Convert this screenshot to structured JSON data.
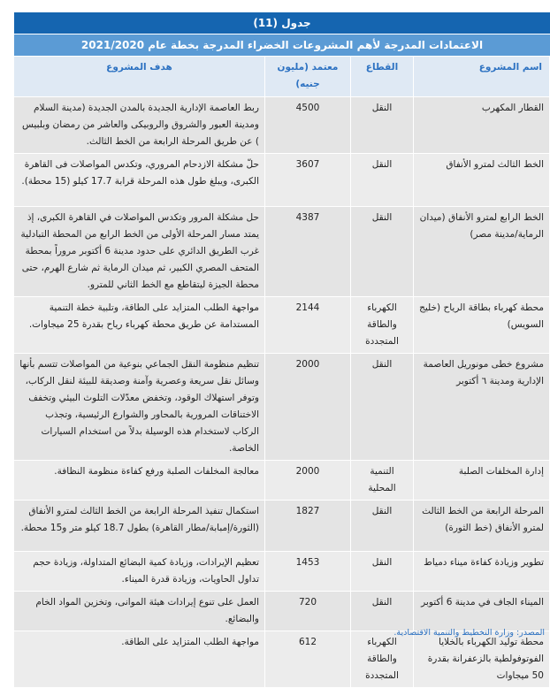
{
  "table": {
    "title": "جدول (11)",
    "subtitle": "الاعتمادات المدرجة لأهم المشروعات الخضراء المدرجة بخطة عام 2021/2020",
    "headers": {
      "name": "اسم المشروع",
      "sector": "القطاع",
      "amount": "معتمد (مليون جنيه)",
      "goal": "هدف المشروع"
    },
    "rows": [
      {
        "name": "القطار المكهرب",
        "sector": "النقل",
        "amount": "4500",
        "goal": "ربط العاصمة الإدارية الجديدة بالمدن الجديدة (مدينة السلام ومدينة العبور والشروق والروبيكى والعاشر من رمضان وبلبيس ) عن طريق المرحلة الرابعة من الخط الثالث."
      },
      {
        "name": "الخط الثالث لمترو الأنفاق",
        "sector": "النقل",
        "amount": "3607",
        "goal": "حلّ مشكلة الازدحام المروري، وتكدس المواصلات فى القاهرة الكبرى، ويبلغ طول هذه المرحلة قرابة 17.7 كيلو (15 محطة)."
      },
      {
        "name": "الخط الرابع لمترو الأنفاق (ميدان الرماية/مدينة مصر)",
        "sector": "النقل",
        "amount": "4387",
        "goal": "حل مشكلة المرور وتكدس المواصلات في القاهرة الكبرى، إذ يمتد مسار المرحلة الأولى من الخط الرابع من المحطة التبادلية غرب الطريق الدائري على حدود مدينة 6 أكتوبر  مروراً بمحطة المتحف المصري الكبير، ثم ميدان الرماية ثم شارع الهرم، حتى محطة الجيزة ليتقاطع مع الخط الثاني للمترو."
      },
      {
        "name": "محطة كهرباء بطاقة الرياح (خليج السويس)",
        "sector": "الكهرباء والطاقة المتجددة",
        "amount": "2144",
        "goal": "مواجهة الطلب المتزايد على الطاقة، وتلبية خطة التنمية المستدامة عن طريق محطة كهرباء رياح بقدرة 25 ميجاوات."
      },
      {
        "name": "مشروع خطى مونوريل العاصمة الإدارية ومدينة ٦ أكتوبر",
        "sector": "النقل",
        "amount": "2000",
        "goal": "تنظيم منظومة النقل الجماعي بنوعية من المواصلات تتسم بأنها وسائل نقل سريعة وعصرية وآمنة وصديقة للبيئة لنقل الركاب، وتوفر استهلاك الوقود، وتخفض معدّلات التلوث البيئي وتخفف الاختناقات المرورية بالمحاور والشوارع الرئيسية، وتجذب الركاب لاستخدام هذه الوسيلة بدلاً من استخدام السيارات الخاصة."
      },
      {
        "name": "إدارة المخلفات الصلبة",
        "sector": "التنمية المحلية",
        "amount": "2000",
        "goal": "معالجة المخلفات الصلبة ورفع كفاءة منظومة النظافة."
      },
      {
        "name": "المرحلة الرابعة من الخط الثالث لمترو الأنفاق (خط الثورة)",
        "sector": "النقل",
        "amount": "1827",
        "goal": "استكمال تنفيذ المرحلة الرابعة من الخط الثالث لمترو الأنفاق (الثورة/إمبابة/مطار القاهرة) بطول 18.7 كيلو متر و15 محطة."
      },
      {
        "name": "تطوير وزيادة كفاءة ميناء دمياط",
        "sector": "النقل",
        "amount": "1453",
        "goal": "تعظيم الإيرادات، وزيادة كمية البضائع المتداولة، وزيادة حجم تداول الحاويات، وزيادة قدرة الميناء."
      },
      {
        "name": "الميناء الجاف في مدينة 6 أكتوبر",
        "sector": "النقل",
        "amount": "720",
        "goal": "العمل على تنوع إيرادات هيئة الموانى، وتخزين المواد الخام والبضائع."
      },
      {
        "name": "محطة توليد الكهرباء بالخلايا الفوتوفولطية بالزعفرانة بقدرة 50 ميجاوات",
        "sector": "الكهرباء والطاقة المتجددة",
        "amount": "612",
        "goal": "مواجهة الطلب المتزايد على الطاقة."
      }
    ]
  },
  "source": "المصدر: وزارة التخطيط والتنمية الاقتصادية."
}
